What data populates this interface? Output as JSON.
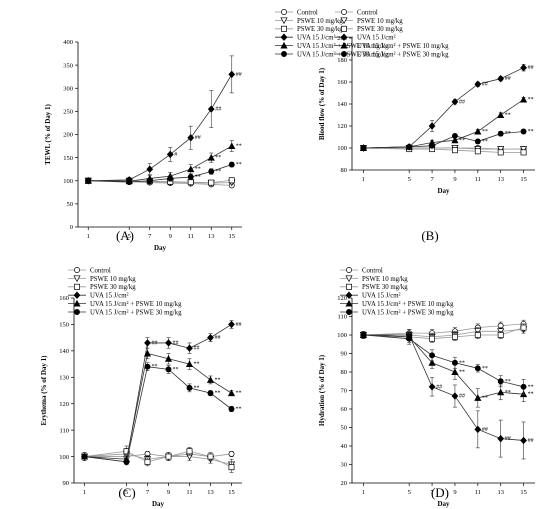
{
  "chart_data": [
    {
      "panel": "(A)",
      "type": "line",
      "xlabel": "Day",
      "ylabel": "TEWL (% of Day 1)",
      "x": [
        1,
        5,
        7,
        9,
        11,
        13,
        15
      ],
      "ylim": [
        0,
        400
      ],
      "yticks": [
        0,
        50,
        100,
        150,
        200,
        250,
        300,
        350,
        400
      ],
      "legend": [
        "Control",
        "PSWE 10 mg/kg",
        "PSWE 30 mg/kg",
        "UVA 15 J/cm²",
        "UVA 15 J/cm² + PSWE 10 mg/kg",
        "UVA 15 J/cm² + PSWE 30 mg/kg"
      ],
      "series": [
        {
          "values": [
            100,
            98,
            96,
            95,
            94,
            92,
            90
          ],
          "err": [
            2,
            3,
            3,
            3,
            3,
            3,
            3
          ],
          "ann": [
            "",
            "",
            "",
            "",
            "",
            "",
            ""
          ]
        },
        {
          "values": [
            100,
            99,
            98,
            97,
            96,
            95,
            96
          ],
          "err": [
            2,
            3,
            3,
            3,
            3,
            3,
            3
          ],
          "ann": [
            "",
            "",
            "",
            "",
            "",
            "",
            ""
          ]
        },
        {
          "values": [
            100,
            100,
            99,
            98,
            97,
            96,
            101
          ],
          "err": [
            2,
            3,
            3,
            3,
            3,
            3,
            4
          ],
          "ann": [
            "",
            "",
            "",
            "",
            "",
            "",
            ""
          ]
        },
        {
          "values": [
            100,
            102,
            125,
            157,
            193,
            255,
            330
          ],
          "err": [
            2,
            5,
            12,
            15,
            25,
            40,
            40
          ],
          "ann": [
            "",
            "",
            "",
            "#",
            "##",
            "##",
            "##"
          ]
        },
        {
          "values": [
            100,
            99,
            105,
            110,
            125,
            150,
            175
          ],
          "err": [
            2,
            4,
            6,
            8,
            10,
            10,
            12
          ],
          "ann": [
            "",
            "",
            "",
            "",
            "**",
            "**",
            "**"
          ]
        },
        {
          "values": [
            100,
            97,
            100,
            105,
            108,
            120,
            135
          ],
          "err": [
            2,
            3,
            5,
            6,
            6,
            6,
            5
          ],
          "ann": [
            "",
            "",
            "",
            "",
            "**",
            "**",
            "**"
          ]
        }
      ]
    },
    {
      "panel": "(B)",
      "type": "line",
      "xlabel": "Day",
      "ylabel": "Blood flow (% of Day 1)",
      "x": [
        1,
        5,
        7,
        9,
        11,
        13,
        15
      ],
      "ylim": [
        80,
        200
      ],
      "yticks": [
        80,
        100,
        120,
        140,
        160,
        180,
        200
      ],
      "legend": [
        "Control",
        "PSWE 10 mg/kg",
        "PSWE 30 mg/kg",
        "UVA 15 J/cm²",
        "UVA 15 J/cm² + PSWE 10 mg/kg",
        "UVA 15 J/cm² + PSWE 30 mg/kg"
      ],
      "series": [
        {
          "values": [
            100,
            100,
            100,
            100,
            100,
            99,
            99
          ],
          "err": [
            1,
            1,
            1,
            1,
            1,
            1,
            1
          ],
          "ann": [
            "",
            "",
            "",
            "",
            "",
            "",
            ""
          ]
        },
        {
          "values": [
            100,
            100,
            100,
            100,
            99,
            99,
            99
          ],
          "err": [
            1,
            1,
            1,
            1,
            1,
            1,
            1
          ],
          "ann": [
            "",
            "",
            "",
            "",
            "",
            "",
            ""
          ]
        },
        {
          "values": [
            100,
            99,
            99,
            98,
            97,
            96,
            96
          ],
          "err": [
            1,
            1,
            1,
            1,
            1,
            1,
            1
          ],
          "ann": [
            "",
            "",
            "",
            "",
            "",
            "",
            ""
          ]
        },
        {
          "values": [
            100,
            101,
            120,
            142,
            158,
            163,
            173
          ],
          "err": [
            1,
            2,
            5,
            2,
            2,
            2,
            3
          ],
          "ann": [
            "",
            "",
            "",
            "##",
            "##",
            "##",
            "##"
          ]
        },
        {
          "values": [
            100,
            101,
            105,
            107,
            115,
            130,
            144
          ],
          "err": [
            1,
            1,
            2,
            2,
            2,
            2,
            2
          ],
          "ann": [
            "",
            "",
            "",
            "**",
            "**",
            "**",
            "**"
          ]
        },
        {
          "values": [
            100,
            101,
            102,
            111,
            106,
            113,
            115
          ],
          "err": [
            1,
            1,
            1,
            1,
            2,
            2,
            1
          ],
          "ann": [
            "",
            "",
            "",
            "",
            "**",
            "**",
            "**"
          ]
        }
      ]
    },
    {
      "panel": "(C)",
      "type": "line",
      "xlabel": "Day",
      "ylabel": "Erythema (% of Day 1)",
      "x": [
        1,
        5,
        7,
        9,
        11,
        13,
        15
      ],
      "ylim": [
        90,
        160
      ],
      "yticks": [
        90,
        100,
        110,
        120,
        130,
        140,
        150,
        160
      ],
      "legend": [
        "Control",
        "PSWE 10 mg/kg",
        "PSWE 30 mg/kg",
        "UVA 15 J/cm²",
        "UVA 15 J/cm² + PSWE 10 mg/kg",
        "UVA 15 J/cm² + PSWE 30 mg/kg"
      ],
      "series": [
        {
          "values": [
            100,
            100,
            101,
            100,
            101,
            100,
            101
          ],
          "err": [
            1,
            1,
            1,
            1,
            1,
            1,
            1
          ],
          "ann": [
            "",
            "",
            "",
            "",
            "",
            "",
            ""
          ]
        },
        {
          "values": [
            100,
            101,
            99,
            100,
            100,
            99,
            97
          ],
          "err": [
            1.5,
            2,
            1.5,
            1.5,
            1.5,
            1.5,
            2
          ],
          "ann": [
            "",
            "",
            "",
            "",
            "",
            "",
            ""
          ]
        },
        {
          "values": [
            100,
            102,
            98,
            100,
            102,
            100,
            96
          ],
          "err": [
            1.5,
            2,
            1.5,
            1.5,
            1.5,
            1.5,
            2
          ],
          "ann": [
            "",
            "",
            "",
            "",
            "",
            "",
            ""
          ]
        },
        {
          "values": [
            100,
            98,
            143,
            143,
            141,
            145,
            150
          ],
          "err": [
            1,
            1,
            2,
            2,
            2,
            1.5,
            1.5
          ],
          "ann": [
            "",
            "",
            "##",
            "##",
            "##",
            "##",
            "##"
          ]
        },
        {
          "values": [
            100,
            99,
            139,
            137,
            135,
            129,
            124
          ],
          "err": [
            1,
            1,
            2,
            2,
            2,
            1.5,
            1
          ],
          "ann": [
            "",
            "",
            "",
            "",
            "**",
            "**",
            "**"
          ]
        },
        {
          "values": [
            100,
            98,
            134,
            133,
            126,
            124,
            118
          ],
          "err": [
            1,
            1,
            1.5,
            1.5,
            1.5,
            1,
            1
          ],
          "ann": [
            "",
            "",
            "**",
            "**",
            "**",
            "**",
            "**"
          ]
        }
      ]
    },
    {
      "panel": "(D)",
      "type": "line",
      "xlabel": "Day",
      "ylabel": "Hydration (% of Day 1)",
      "x": [
        1,
        5,
        7,
        9,
        11,
        13,
        15
      ],
      "ylim": [
        20,
        120
      ],
      "yticks": [
        20,
        30,
        40,
        50,
        60,
        70,
        80,
        90,
        100,
        110,
        120
      ],
      "legend": [
        "Control",
        "PSWE 10 mg/kg",
        "PSWE 30 mg/kg",
        "UVA 15 J/cm²",
        "UVA 15 J/cm² + PSWE 10 mg/kg",
        "UVA 15 J/cm² + PSWE 30 mg/kg"
      ],
      "series": [
        {
          "values": [
            100,
            101,
            101,
            102,
            104,
            105,
            106
          ],
          "err": [
            2,
            2,
            2,
            2,
            2,
            2,
            2
          ],
          "ann": [
            "",
            "",
            "",
            "",
            "",
            "",
            ""
          ]
        },
        {
          "values": [
            100,
            100,
            99,
            100,
            102,
            102,
            103
          ],
          "err": [
            2,
            2,
            2,
            2,
            2,
            2,
            2
          ],
          "ann": [
            "",
            "",
            "",
            "",
            "",
            "",
            ""
          ]
        },
        {
          "values": [
            100,
            99,
            98,
            99,
            100,
            100,
            104
          ],
          "err": [
            2,
            2,
            2,
            2,
            2,
            2,
            2
          ],
          "ann": [
            "",
            "",
            "",
            "",
            "",
            "",
            ""
          ]
        },
        {
          "values": [
            100,
            100,
            72,
            67,
            49,
            44,
            43
          ],
          "err": [
            2,
            3,
            5,
            6,
            10,
            10,
            10
          ],
          "ann": [
            "",
            "",
            "##",
            "##",
            "##",
            "##",
            "##"
          ]
        },
        {
          "values": [
            100,
            99,
            85,
            80,
            66,
            69,
            68
          ],
          "err": [
            2,
            3,
            3,
            4,
            5,
            4,
            4
          ],
          "ann": [
            "",
            "",
            "",
            "**",
            "**",
            "**",
            "**"
          ]
        },
        {
          "values": [
            100,
            98,
            89,
            85,
            82,
            75,
            72
          ],
          "err": [
            2,
            3,
            3,
            3,
            2,
            3,
            4
          ],
          "ann": [
            "",
            "",
            "",
            "**",
            "**",
            "**",
            "**"
          ]
        }
      ]
    }
  ]
}
